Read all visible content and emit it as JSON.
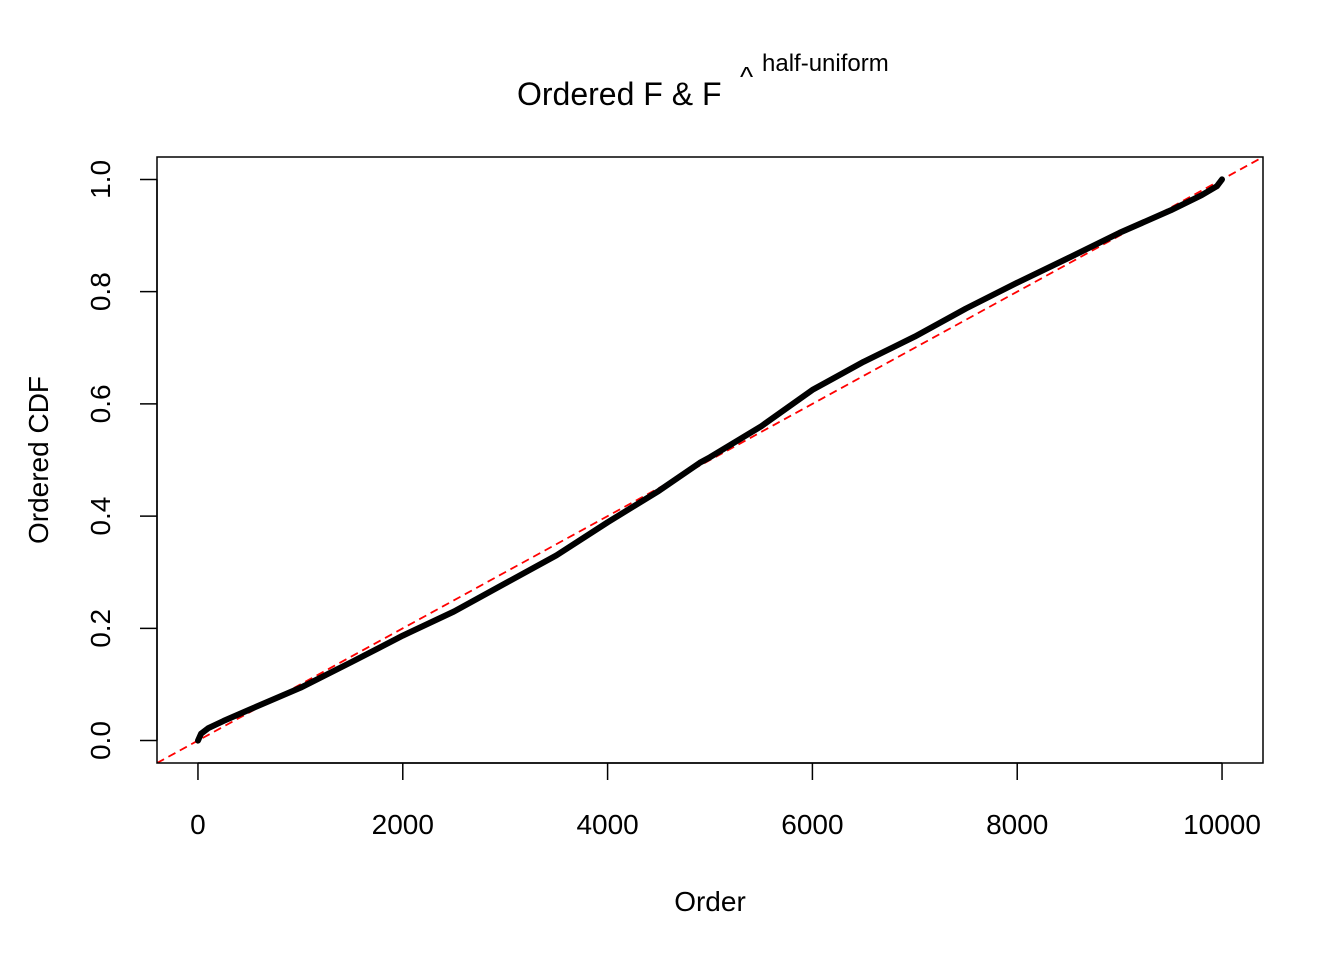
{
  "chart_data": {
    "type": "line",
    "title": "Ordered F & F",
    "title_hat": "^",
    "title_superscript": "half-uniform",
    "xlabel": "Order",
    "ylabel": "Ordered CDF",
    "xlim": [
      -400,
      10400
    ],
    "ylim": [
      -0.04,
      1.04
    ],
    "xticks": [
      0,
      2000,
      4000,
      6000,
      8000,
      10000
    ],
    "xtick_labels": [
      "0",
      "2000",
      "4000",
      "6000",
      "8000",
      "10000"
    ],
    "yticks": [
      0,
      0.2,
      0.4,
      0.6,
      0.8,
      1.0
    ],
    "ytick_labels": [
      "0.0",
      "0.2",
      "0.4",
      "0.6",
      "0.8",
      "1.0"
    ],
    "grid": false,
    "series": [
      {
        "color": "#000000",
        "style": "thick-solid",
        "x": [
          0,
          30,
          100,
          250,
          500,
          1000,
          1500,
          2000,
          2500,
          3000,
          3500,
          4000,
          4500,
          4900,
          5000,
          5500,
          6000,
          6500,
          7000,
          7500,
          8000,
          8500,
          9000,
          9500,
          9800,
          9950,
          10000
        ],
        "y": [
          0.0,
          0.012,
          0.022,
          0.035,
          0.055,
          0.094,
          0.14,
          0.187,
          0.23,
          0.28,
          0.33,
          0.389,
          0.445,
          0.495,
          0.505,
          0.56,
          0.625,
          0.675,
          0.72,
          0.77,
          0.816,
          0.86,
          0.905,
          0.945,
          0.972,
          0.988,
          1.0
        ]
      }
    ],
    "reference_line": {
      "color": "#ff0000",
      "style": "dashed",
      "intercept": 0,
      "slope": 0.0001
    }
  }
}
